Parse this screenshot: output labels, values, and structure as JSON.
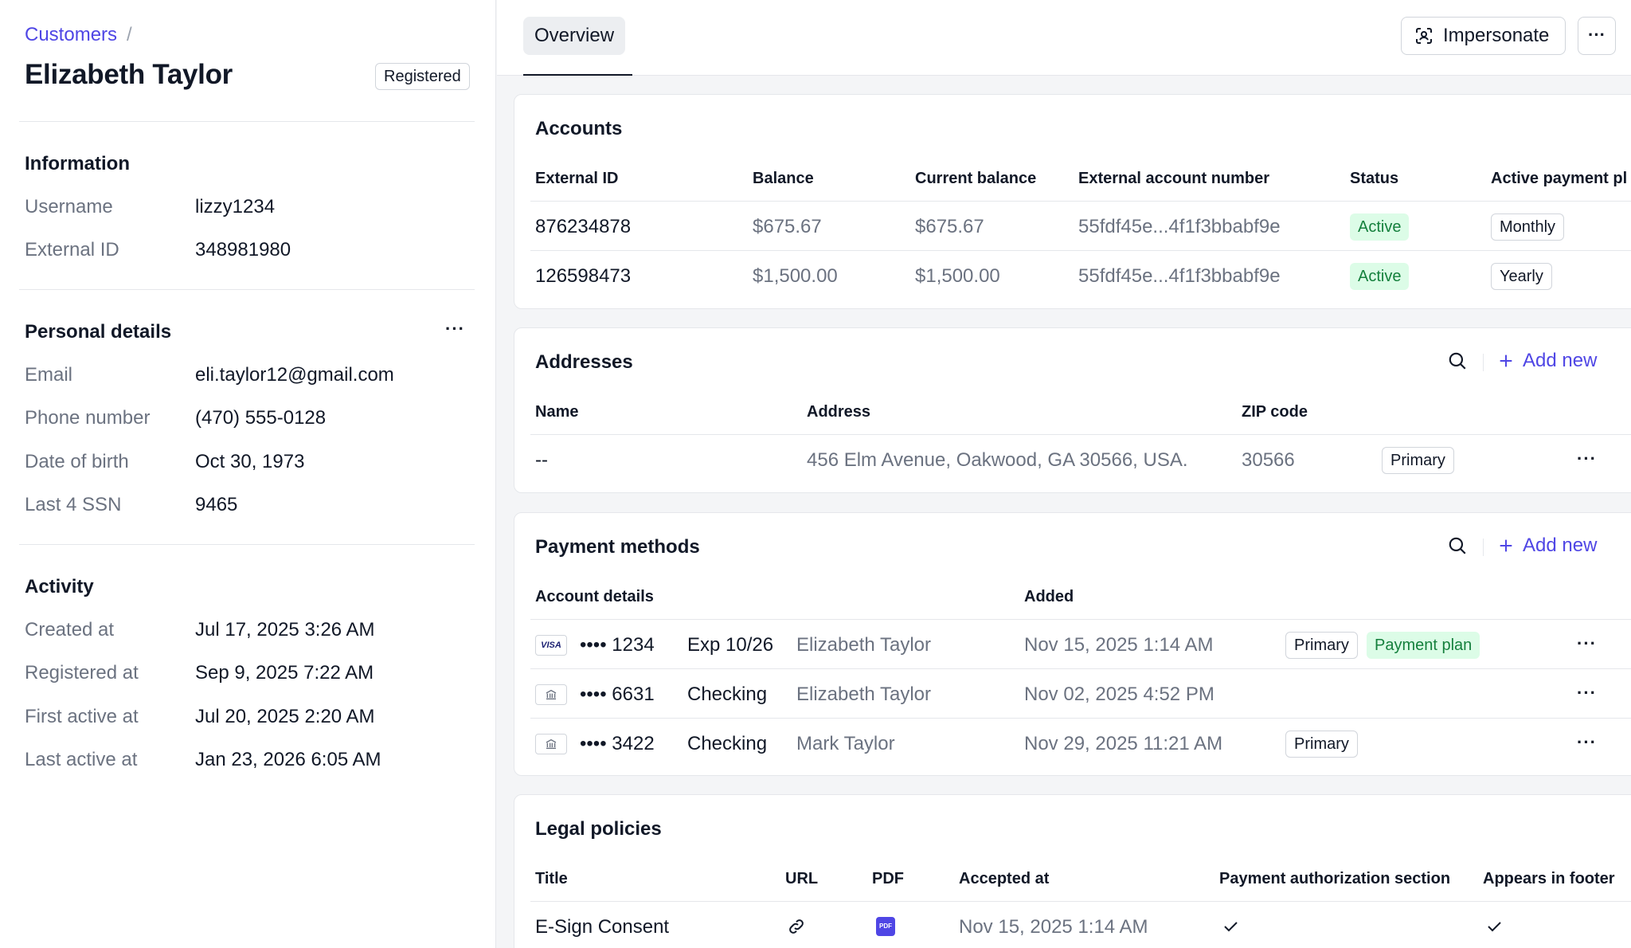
{
  "breadcrumb": {
    "parent": "Customers",
    "separator": "/"
  },
  "customer": {
    "name": "Elizabeth Taylor",
    "status": "Registered"
  },
  "information": {
    "title": "Information",
    "rows": [
      {
        "label": "Username",
        "value": "lizzy1234"
      },
      {
        "label": "External ID",
        "value": "348981980"
      }
    ]
  },
  "personal": {
    "title": "Personal details",
    "rows": [
      {
        "label": "Email",
        "value": "eli.taylor12@gmail.com"
      },
      {
        "label": "Phone number",
        "value": "(470) 555-0128"
      },
      {
        "label": "Date of birth",
        "value": "Oct 30, 1973"
      },
      {
        "label": "Last 4 SSN",
        "value": "9465"
      }
    ]
  },
  "activity": {
    "title": "Activity",
    "rows": [
      {
        "label": "Created at",
        "value": "Jul 17, 2025 3:26 AM"
      },
      {
        "label": "Registered at",
        "value": "Sep 9, 2025 7:22 AM"
      },
      {
        "label": "First active at",
        "value": "Jul 20, 2025 2:20 AM"
      },
      {
        "label": "Last active at",
        "value": "Jan 23, 2026 6:05 AM"
      }
    ]
  },
  "tabs": {
    "overview": "Overview"
  },
  "actions": {
    "impersonate": "Impersonate",
    "more": "···"
  },
  "accounts": {
    "title": "Accounts",
    "headers": [
      "External ID",
      "Balance",
      "Current balance",
      "External account number",
      "Status",
      "Active payment pl"
    ],
    "rows": [
      {
        "id": "876234878",
        "balance": "$675.67",
        "current": "$675.67",
        "number": "55fdf45e...4f1f3bbabf9e",
        "status": "Active",
        "plan": "Monthly"
      },
      {
        "id": "126598473",
        "balance": "$1,500.00",
        "current": "$1,500.00",
        "number": "55fdf45e...4f1f3bbabf9e",
        "status": "Active",
        "plan": "Yearly"
      }
    ]
  },
  "addresses": {
    "title": "Addresses",
    "add_new": "Add new",
    "headers": [
      "Name",
      "Address",
      "ZIP code"
    ],
    "rows": [
      {
        "name": "--",
        "address": "456 Elm Avenue, Oakwood, GA 30566, USA.",
        "zip": "30566",
        "badge": "Primary"
      }
    ]
  },
  "payments": {
    "title": "Payment methods",
    "add_new": "Add new",
    "headers": [
      "Account details",
      "Added"
    ],
    "rows": [
      {
        "icon": "VISA",
        "mask": "•••• 1234",
        "type": "Exp 10/26",
        "holder": "Elizabeth Taylor",
        "added": "Nov 15, 2025 1:14 AM",
        "badge1": "Primary",
        "badge2": "Payment plan"
      },
      {
        "icon": "bank",
        "mask": "•••• 6631",
        "type": "Checking",
        "holder": "Elizabeth Taylor",
        "added": "Nov 02, 2025 4:52 PM",
        "badge1": "",
        "badge2": ""
      },
      {
        "icon": "bank",
        "mask": "•••• 3422",
        "type": "Checking",
        "holder": "Mark Taylor",
        "added": "Nov 29, 2025 11:21 AM",
        "badge1": "Primary",
        "badge2": ""
      }
    ]
  },
  "legal": {
    "title": "Legal policies",
    "headers": [
      "Title",
      "URL",
      "PDF",
      "Accepted at",
      "Payment authorization section",
      "Appears in footer"
    ],
    "rows": [
      {
        "title": "E-Sign Consent",
        "pdf_label": "PDF",
        "accepted": "Nov 15, 2025 1:14 AM"
      }
    ]
  },
  "colors": {
    "accent": "#4f46e5",
    "success_bg": "#dcfce7",
    "success_text": "#15803d"
  }
}
